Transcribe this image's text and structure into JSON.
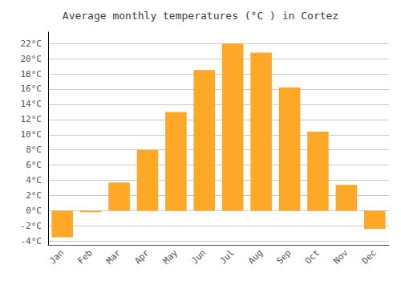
{
  "chart_data": {
    "type": "bar",
    "title": "Average monthly temperatures (°C ) in Cortez",
    "categories": [
      "Jan",
      "Feb",
      "Mar",
      "Apr",
      "May",
      "Jun",
      "Jul",
      "Aug",
      "Sep",
      "Oct",
      "Nov",
      "Dec"
    ],
    "values": [
      -3.5,
      -0.2,
      3.7,
      8.0,
      13.0,
      18.5,
      22.0,
      20.8,
      16.2,
      10.4,
      3.4,
      -2.4
    ],
    "color": "#FFA726",
    "ylim": [
      -4.5,
      23.5
    ],
    "yticks": [
      {
        "value": -4,
        "label": "-4°C"
      },
      {
        "value": -2,
        "label": "-2°C"
      },
      {
        "value": 0,
        "label": "0°C"
      },
      {
        "value": 2,
        "label": "2°C"
      },
      {
        "value": 4,
        "label": "4°C"
      },
      {
        "value": 6,
        "label": "6°C"
      },
      {
        "value": 8,
        "label": "8°C"
      },
      {
        "value": 10,
        "label": "10°C"
      },
      {
        "value": 12,
        "label": "12°C"
      },
      {
        "value": 14,
        "label": "14°C"
      },
      {
        "value": 16,
        "label": "16°C"
      },
      {
        "value": 18,
        "label": "18°C"
      },
      {
        "value": 20,
        "label": "20°C"
      },
      {
        "value": 22,
        "label": "22°C"
      }
    ],
    "grid": true
  }
}
